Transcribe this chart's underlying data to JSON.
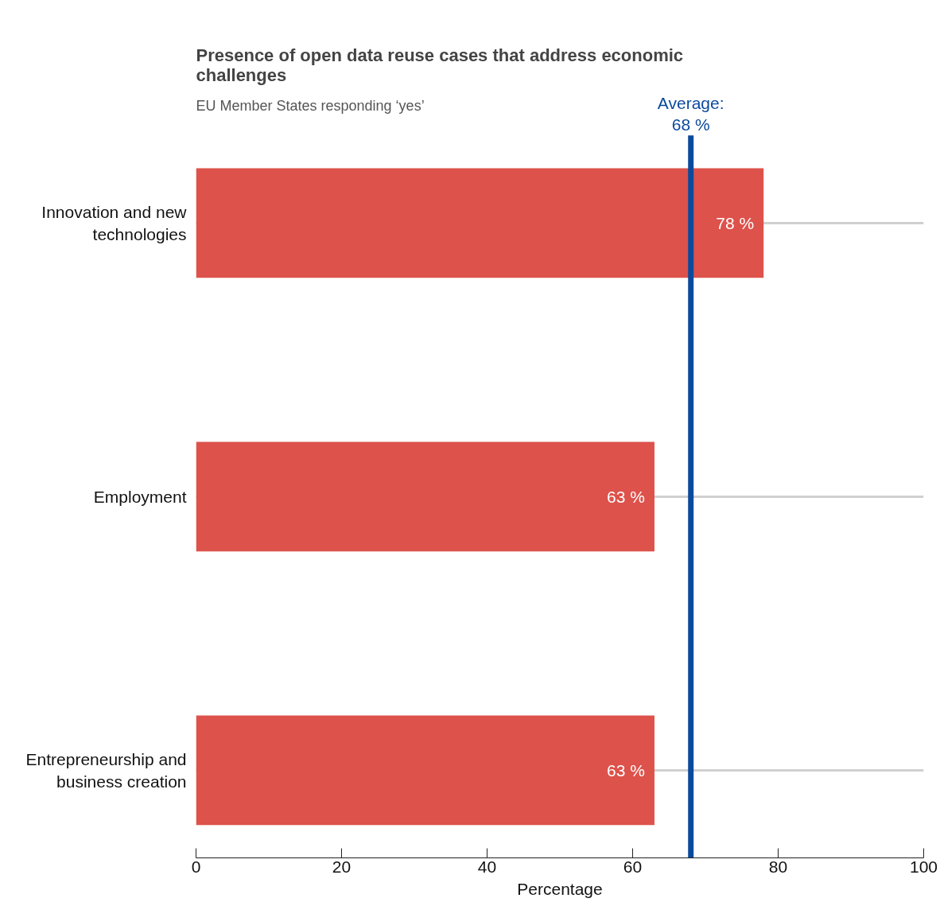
{
  "chart_data": {
    "type": "bar",
    "orientation": "horizontal",
    "title": "Presence of open data reuse cases that address economic challenges",
    "subtitle": "EU Member States responding ‘yes’",
    "xlabel": "Percentage",
    "categories": [
      "Innovation and new technologies",
      "Employment",
      "Entrepreneurship and business creation"
    ],
    "values": [
      78,
      63,
      63
    ],
    "color": "#dd524b",
    "value_labels": [
      "78 %",
      "63 %",
      "63 %"
    ],
    "xlim": [
      0,
      100
    ],
    "xticks": [
      0,
      20,
      40,
      60,
      80,
      100
    ],
    "grid": "y",
    "ref_lines": [
      {
        "axis": "x",
        "value": 68,
        "label": "Average: 68 %",
        "color": "#0a4a9c"
      }
    ]
  }
}
